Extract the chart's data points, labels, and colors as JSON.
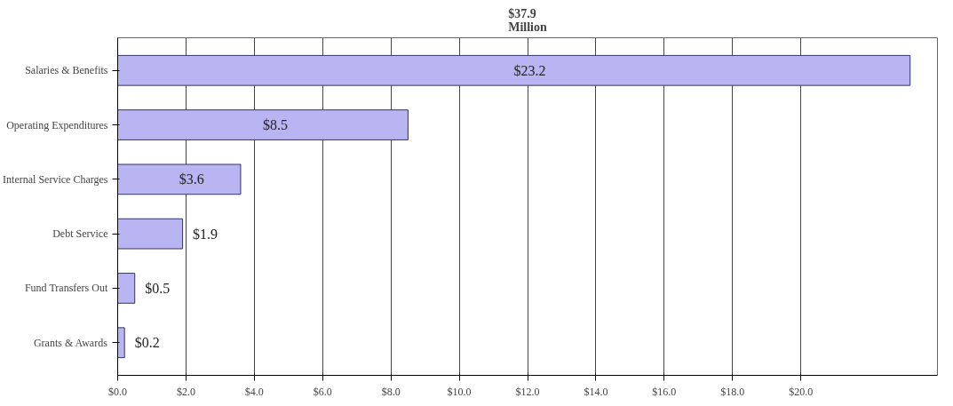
{
  "chart_data": {
    "type": "bar",
    "orientation": "horizontal",
    "title": "$37.9\nMillion",
    "categories": [
      "Salaries & Benefits",
      "Operating Expenditures",
      "Internal Service Charges",
      "Debt Service",
      "Fund Transfers Out",
      "Grants & Awards"
    ],
    "values": [
      23.2,
      8.5,
      3.6,
      1.9,
      0.5,
      0.2
    ],
    "value_labels": [
      "$23.2",
      "$8.5",
      "$3.6",
      "$1.9",
      "$0.5",
      "$0.2"
    ],
    "color": "#b9b5f2",
    "xlim": [
      0,
      24
    ],
    "xticks": [
      {
        "value": 0,
        "label": "$0.0"
      },
      {
        "value": 2,
        "label": "$2.0"
      },
      {
        "value": 4,
        "label": "$4.0"
      },
      {
        "value": 6,
        "label": "$6.0"
      },
      {
        "value": 8,
        "label": "$8.0"
      },
      {
        "value": 10,
        "label": "$10.0"
      },
      {
        "value": 12,
        "label": "$12.0"
      },
      {
        "value": 14,
        "label": "$14.0"
      },
      {
        "value": 16,
        "label": "$16.0"
      },
      {
        "value": 18,
        "label": "$18.0"
      },
      {
        "value": 20,
        "label": "$20.0"
      }
    ],
    "grid": "x"
  }
}
